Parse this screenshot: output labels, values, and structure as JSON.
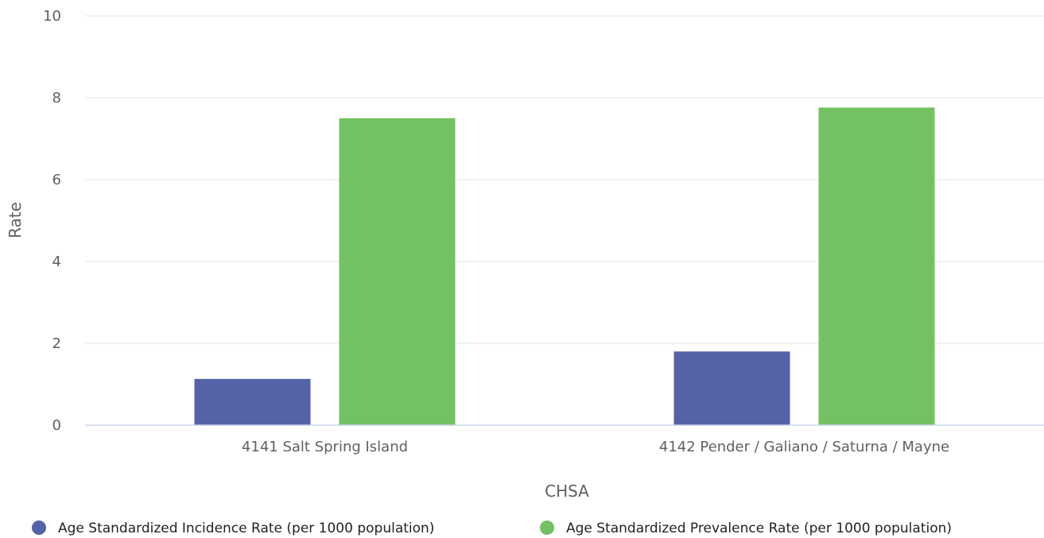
{
  "chart_data": {
    "type": "bar",
    "title": "",
    "xlabel": "CHSA",
    "ylabel": "Rate",
    "ylim": [
      0,
      10
    ],
    "yticks": [
      0,
      2,
      4,
      6,
      8,
      10
    ],
    "grid": true,
    "legend_position": "bottom",
    "categories": [
      "4141 Salt Spring Island",
      "4142 Pender / Galiano / Saturna / Mayne"
    ],
    "series": [
      {
        "name": "Age Standardized Incidence Rate (per 1000 population)",
        "color": "#5462a8",
        "values": [
          1.13,
          1.8
        ]
      },
      {
        "name": "Age Standardized Prevalence Rate (per 1000 population)",
        "color": "#73c162",
        "values": [
          7.5,
          7.76
        ]
      }
    ]
  }
}
